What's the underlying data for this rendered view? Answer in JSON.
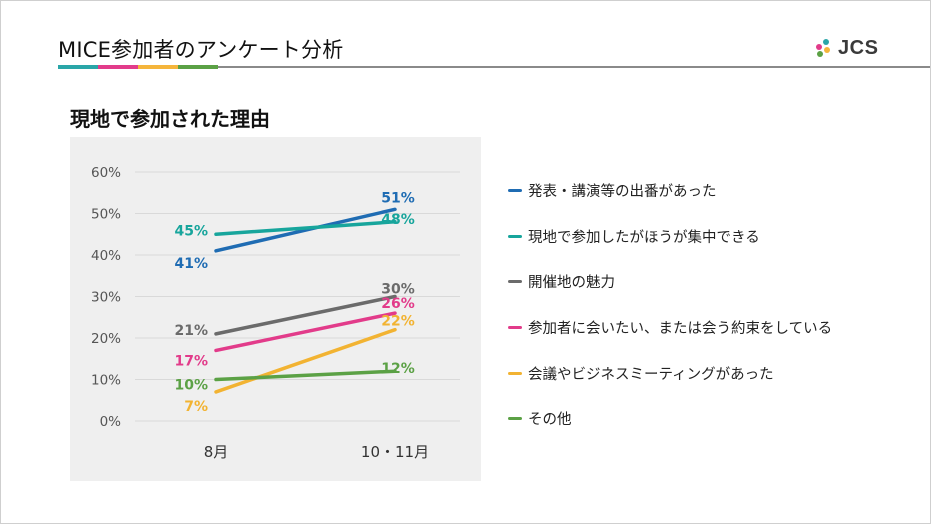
{
  "header": {
    "title": "MICE参加者のアンケート分析",
    "accent_colors": [
      "#2aa6a8",
      "#e23b8a",
      "#f5b53b",
      "#5ba145"
    ]
  },
  "logo": {
    "text": "JCS",
    "name": "jcs-logo-icon"
  },
  "section": {
    "title": "現地で参加された理由"
  },
  "chart_data": {
    "type": "line",
    "categories": [
      "8月",
      "10・11月"
    ],
    "ylim": [
      0,
      60
    ],
    "yticks": [
      "0%",
      "10%",
      "20%",
      "30%",
      "40%",
      "50%",
      "60%"
    ],
    "grid": true,
    "legend_position": "right",
    "series": [
      {
        "name": "発表・講演等の出番があった",
        "values": [
          41,
          51
        ],
        "labels": [
          "41%",
          "51%"
        ],
        "color": "#1f6cb3"
      },
      {
        "name": "現地で参加したがほうが集中できる",
        "values": [
          45,
          48
        ],
        "labels": [
          "45%",
          "48%"
        ],
        "color": "#17a59c"
      },
      {
        "name": "開催地の魅力",
        "values": [
          21,
          30
        ],
        "labels": [
          "21%",
          "30%"
        ],
        "color": "#6b6b6b"
      },
      {
        "name": "参加者に会いたい、または会う約束をしている",
        "values": [
          17,
          26
        ],
        "labels": [
          "17%",
          "26%"
        ],
        "color": "#e23b8a"
      },
      {
        "name": "会議やビジネスミーティングがあった",
        "values": [
          7,
          22
        ],
        "labels": [
          "7%",
          "22%"
        ],
        "color": "#f2b332"
      },
      {
        "name": "その他",
        "values": [
          10,
          12
        ],
        "labels": [
          "10%",
          "12%"
        ],
        "color": "#5ba145"
      }
    ]
  }
}
